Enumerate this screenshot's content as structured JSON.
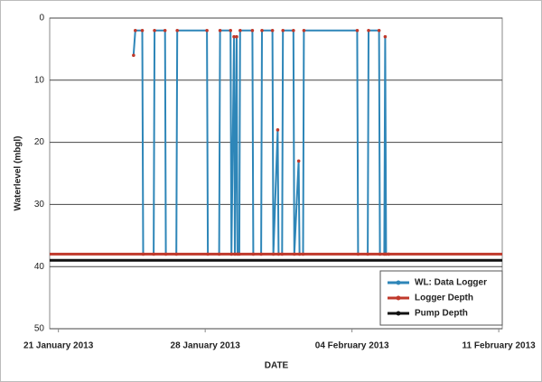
{
  "chart_data": {
    "type": "line",
    "x_label": "DATE",
    "y_label": "Waterlevel (mbgl)",
    "xlim": [
      "2013-01-20T14:00",
      "2013-02-11T04:00"
    ],
    "xticks": [
      {
        "value": "2013-01-21T00:00",
        "label": "21 January 2013"
      },
      {
        "value": "2013-01-28T00:00",
        "label": "28 January 2013"
      },
      {
        "value": "2013-02-04T00:00",
        "label": "04 February 2013"
      },
      {
        "value": "2013-02-11T00:00",
        "label": "11 February 2013"
      }
    ],
    "ylim": [
      0,
      50
    ],
    "y_inverted": true,
    "yticks": [
      0,
      10,
      20,
      30,
      40,
      50
    ],
    "grid": true,
    "legend": "lower right",
    "series": [
      {
        "name": "WL: Data Logger",
        "color": "#2e86b8",
        "marker_color": "#c0392b",
        "x": [
          "2013-01-24T14:00",
          "2013-01-24T16:00",
          "2013-01-25T00:00",
          "2013-01-25T01:00",
          "2013-01-25T13:00",
          "2013-01-25T14:00",
          "2013-01-26T02:00",
          "2013-01-26T03:00",
          "2013-01-26T15:00",
          "2013-01-26T16:00",
          "2013-01-28T02:00",
          "2013-01-28T03:00",
          "2013-01-28T16:00",
          "2013-01-28T17:00",
          "2013-01-29T05:00",
          "2013-01-29T06:00",
          "2013-01-29T09:00",
          "2013-01-29T10:00",
          "2013-01-29T12:00",
          "2013-01-29T13:00",
          "2013-01-29T15:00",
          "2013-01-29T16:00",
          "2013-01-30T06:00",
          "2013-01-30T07:00",
          "2013-01-30T16:00",
          "2013-01-30T17:00",
          "2013-01-31T05:00",
          "2013-01-31T06:00",
          "2013-01-31T11:00",
          "2013-01-31T12:00",
          "2013-01-31T16:00",
          "2013-01-31T17:00",
          "2013-02-01T05:00",
          "2013-02-01T06:00",
          "2013-02-01T11:00",
          "2013-02-01T12:00",
          "2013-02-01T16:00",
          "2013-02-01T17:00",
          "2013-02-04T06:00",
          "2013-02-04T07:00",
          "2013-02-04T18:00",
          "2013-02-04T19:00",
          "2013-02-05T07:00",
          "2013-02-05T08:00",
          "2013-02-05T13:00",
          "2013-02-05T14:00",
          "2013-02-05T15:00",
          "2013-02-05T18:00"
        ],
        "values": [
          6,
          2,
          2,
          38,
          38,
          2,
          2,
          38,
          38,
          2,
          2,
          38,
          38,
          2,
          2,
          38,
          3,
          38,
          3,
          38,
          38,
          2,
          2,
          38,
          38,
          2,
          2,
          38,
          18,
          38,
          38,
          2,
          2,
          38,
          23,
          38,
          38,
          2,
          2,
          38,
          38,
          2,
          2,
          38,
          38,
          3,
          38,
          38
        ]
      },
      {
        "name": "Logger Depth",
        "color": "#c0392b",
        "x": [
          "2013-01-20T14:00",
          "2013-02-11T04:00"
        ],
        "values": [
          38,
          38
        ]
      },
      {
        "name": "Pump Depth",
        "color": "#111111",
        "x": [
          "2013-01-20T14:00",
          "2013-02-11T04:00"
        ],
        "values": [
          39,
          39
        ]
      }
    ]
  }
}
